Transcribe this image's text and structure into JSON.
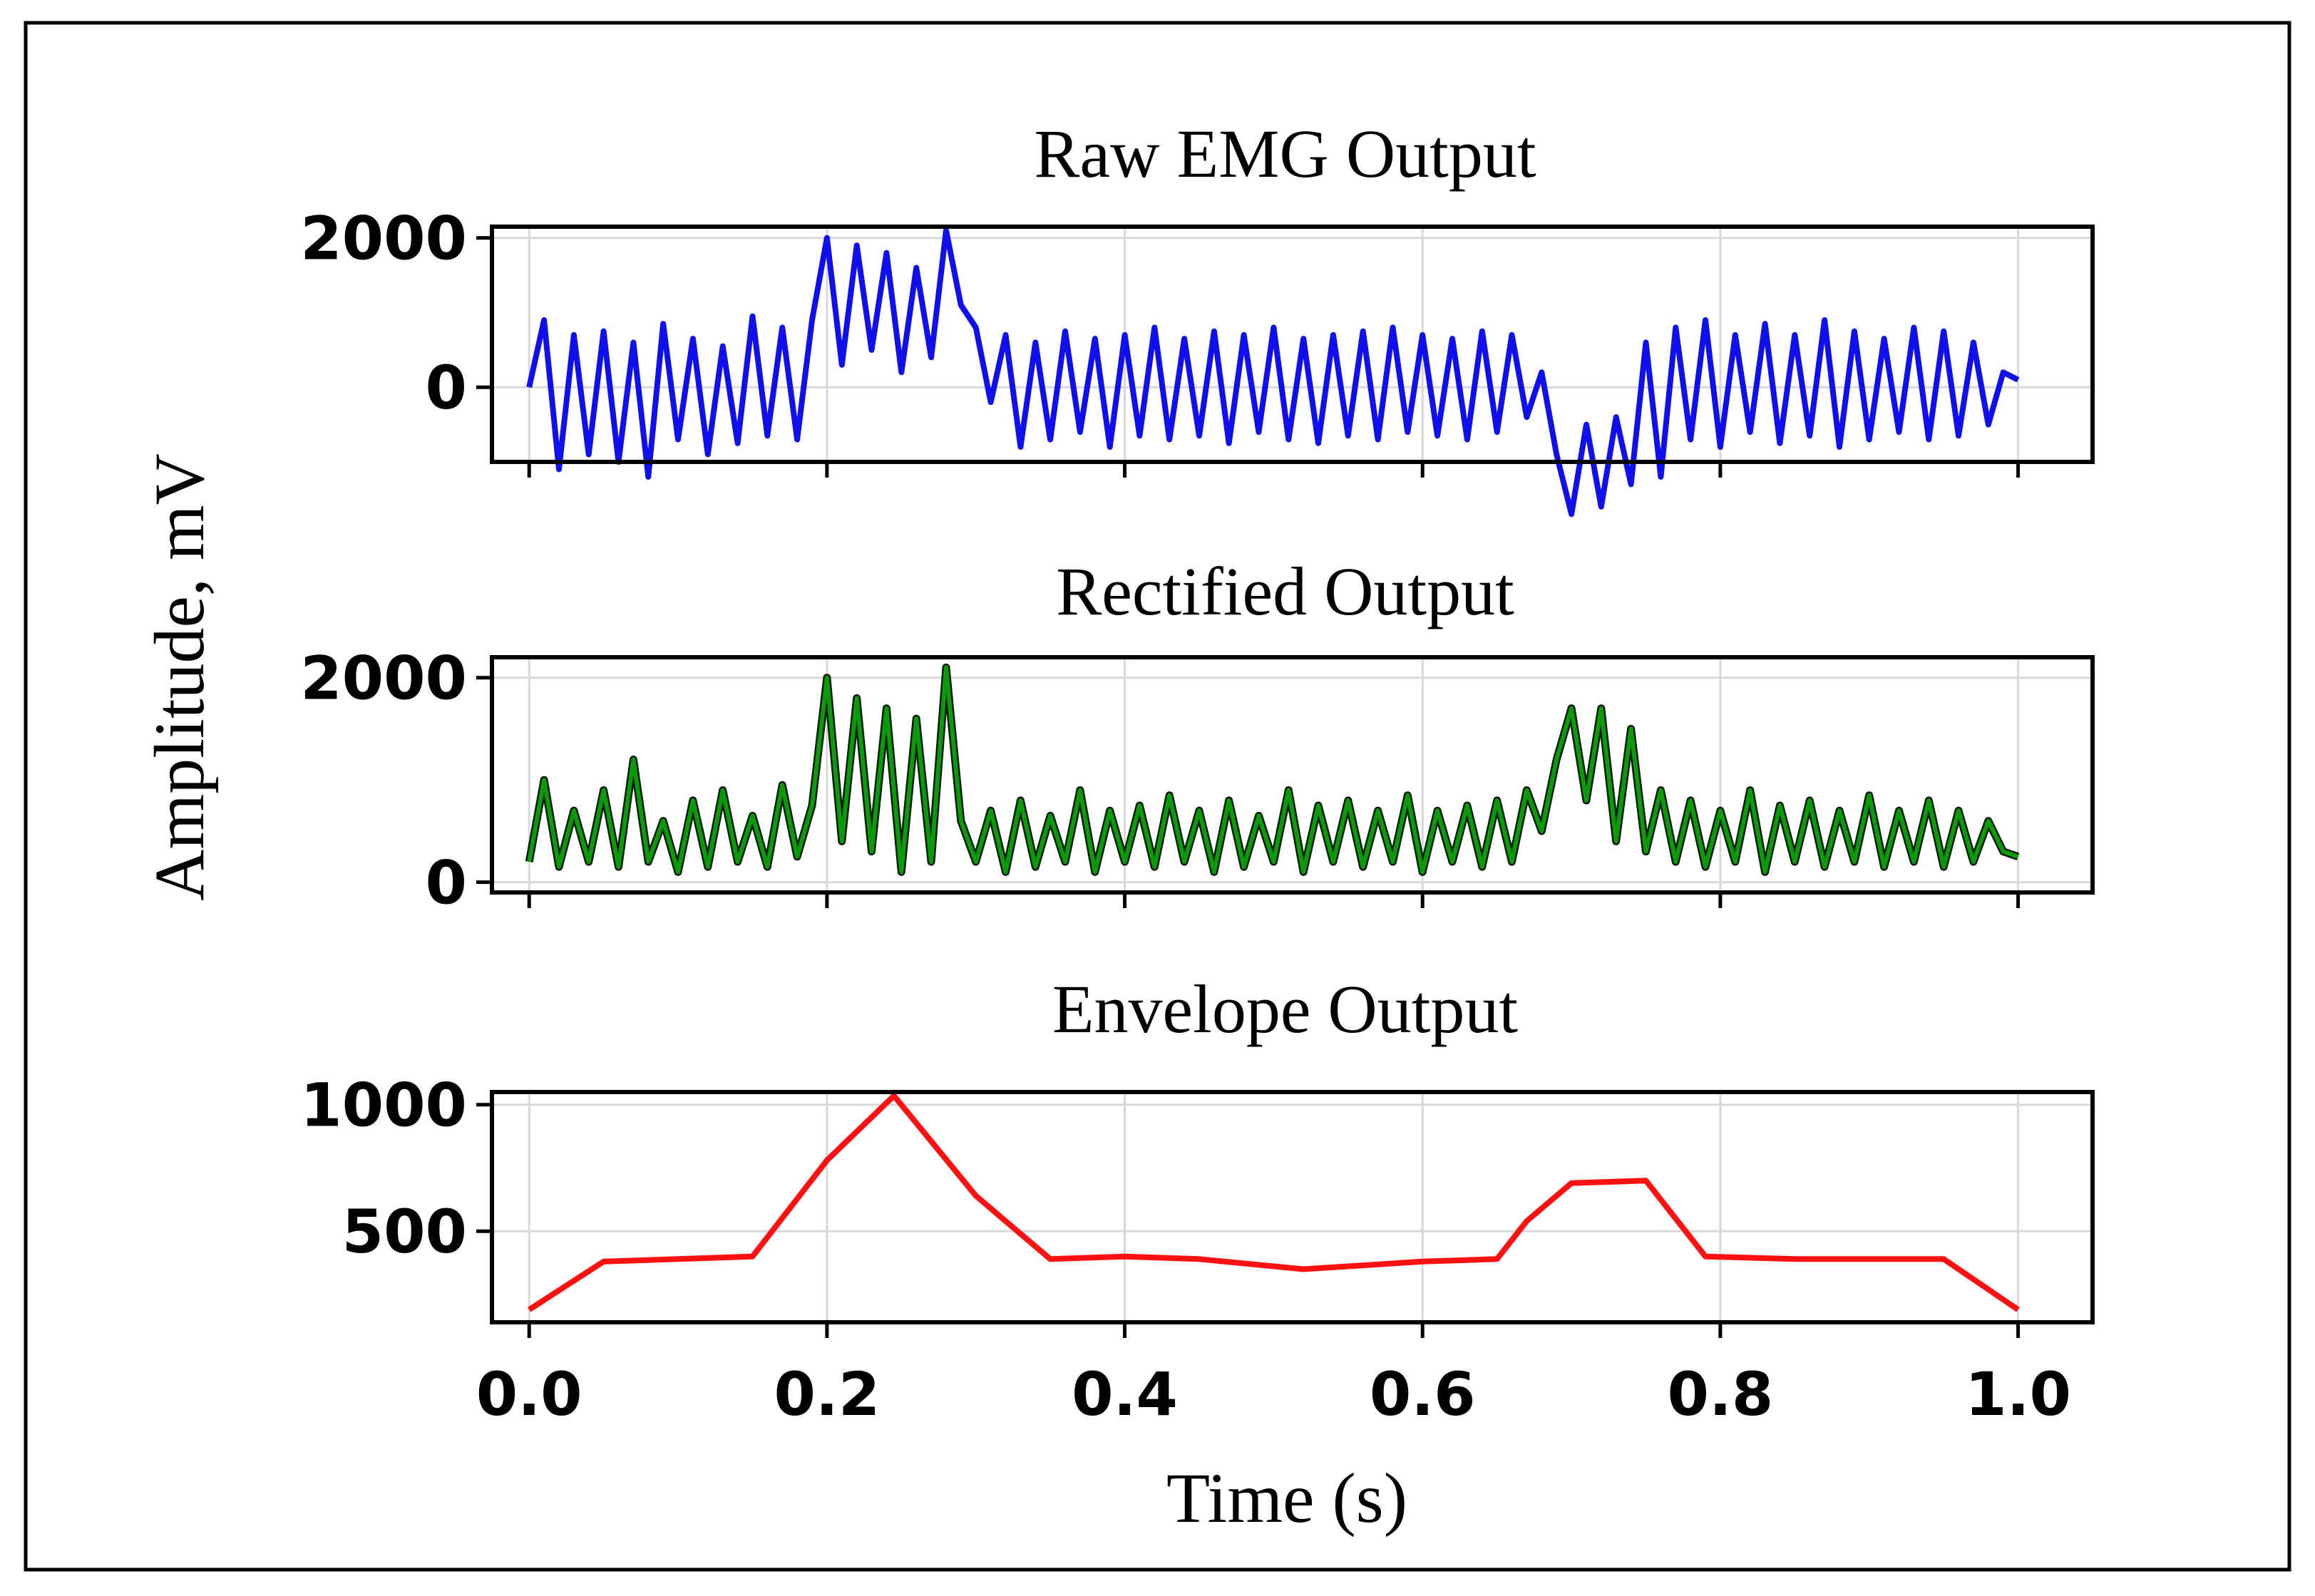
{
  "figure": {
    "ylabel": "Amplitude, mV",
    "xlabel": "Time (s)"
  },
  "chart_data": [
    {
      "type": "line",
      "title": "Raw EMG Output",
      "color": "#1010ee",
      "ylim": [
        -1000,
        2150
      ],
      "yticks": [
        0,
        2000
      ],
      "xlim": [
        -0.025,
        1.05
      ],
      "xticks": [
        0.0,
        0.2,
        0.4,
        0.6,
        0.8,
        1.0
      ],
      "show_xtick_labels": false,
      "grid": true,
      "series": [
        {
          "x": [
            0,
            0.01,
            0.02,
            0.03,
            0.04,
            0.05,
            0.06,
            0.07,
            0.08,
            0.09,
            0.1,
            0.11,
            0.12,
            0.13,
            0.14,
            0.15,
            0.16,
            0.17,
            0.18,
            0.19,
            0.2,
            0.21,
            0.22,
            0.23,
            0.24,
            0.25,
            0.26,
            0.27,
            0.28,
            0.29,
            0.3,
            0.31,
            0.32,
            0.33,
            0.34,
            0.35,
            0.36,
            0.37,
            0.38,
            0.39,
            0.4,
            0.41,
            0.42,
            0.43,
            0.44,
            0.45,
            0.46,
            0.47,
            0.48,
            0.49,
            0.5,
            0.51,
            0.52,
            0.53,
            0.54,
            0.55,
            0.56,
            0.57,
            0.58,
            0.59,
            0.6,
            0.61,
            0.62,
            0.63,
            0.64,
            0.65,
            0.66,
            0.67,
            0.68,
            0.69,
            0.7,
            0.71,
            0.72,
            0.73,
            0.74,
            0.75,
            0.76,
            0.77,
            0.78,
            0.79,
            0.8,
            0.81,
            0.82,
            0.83,
            0.84,
            0.85,
            0.86,
            0.87,
            0.88,
            0.89,
            0.9,
            0.91,
            0.92,
            0.93,
            0.94,
            0.95,
            0.96,
            0.97,
            0.98,
            0.99,
            1.0
          ],
          "y": [
            0,
            900,
            -1100,
            700,
            -900,
            750,
            -1000,
            600,
            -1200,
            850,
            -700,
            650,
            -900,
            550,
            -750,
            950,
            -650,
            800,
            -700,
            900,
            2000,
            300,
            1900,
            500,
            1800,
            200,
            1600,
            400,
            2100,
            1100,
            800,
            -200,
            700,
            -800,
            600,
            -700,
            750,
            -600,
            650,
            -800,
            700,
            -650,
            800,
            -700,
            650,
            -650,
            750,
            -750,
            700,
            -600,
            800,
            -700,
            650,
            -750,
            700,
            -650,
            750,
            -700,
            800,
            -600,
            700,
            -650,
            650,
            -700,
            750,
            -600,
            700,
            -400,
            200,
            -900,
            -1700,
            -500,
            -1600,
            -400,
            -1300,
            600,
            -1200,
            800,
            -700,
            900,
            -800,
            700,
            -600,
            850,
            -750,
            700,
            -650,
            900,
            -800,
            750,
            -700,
            650,
            -600,
            800,
            -700,
            750,
            -650,
            600,
            -500,
            200,
            100
          ]
        }
      ]
    },
    {
      "type": "line",
      "title": "Rectified Output",
      "color": "#0a9a0a",
      "edge_color": "#0a1a0a",
      "ylim": [
        -100,
        2200
      ],
      "yticks": [
        0,
        2000
      ],
      "xlim": [
        -0.025,
        1.05
      ],
      "xticks": [
        0.0,
        0.2,
        0.4,
        0.6,
        0.8,
        1.0
      ],
      "show_xtick_labels": false,
      "grid": true,
      "series": [
        {
          "x": [
            0,
            0.01,
            0.02,
            0.03,
            0.04,
            0.05,
            0.06,
            0.07,
            0.08,
            0.09,
            0.1,
            0.11,
            0.12,
            0.13,
            0.14,
            0.15,
            0.16,
            0.17,
            0.18,
            0.19,
            0.2,
            0.21,
            0.22,
            0.23,
            0.24,
            0.25,
            0.26,
            0.27,
            0.28,
            0.29,
            0.3,
            0.31,
            0.32,
            0.33,
            0.34,
            0.35,
            0.36,
            0.37,
            0.38,
            0.39,
            0.4,
            0.41,
            0.42,
            0.43,
            0.44,
            0.45,
            0.46,
            0.47,
            0.48,
            0.49,
            0.5,
            0.51,
            0.52,
            0.53,
            0.54,
            0.55,
            0.56,
            0.57,
            0.58,
            0.59,
            0.6,
            0.61,
            0.62,
            0.63,
            0.64,
            0.65,
            0.66,
            0.67,
            0.68,
            0.69,
            0.7,
            0.71,
            0.72,
            0.73,
            0.74,
            0.75,
            0.76,
            0.77,
            0.78,
            0.79,
            0.8,
            0.81,
            0.82,
            0.83,
            0.84,
            0.85,
            0.86,
            0.87,
            0.88,
            0.89,
            0.9,
            0.91,
            0.92,
            0.93,
            0.94,
            0.95,
            0.96,
            0.97,
            0.98,
            0.99,
            1.0
          ],
          "y": [
            200,
            1000,
            150,
            700,
            200,
            900,
            150,
            1200,
            200,
            600,
            100,
            800,
            150,
            900,
            200,
            650,
            150,
            950,
            250,
            750,
            2000,
            400,
            1800,
            300,
            1700,
            100,
            1600,
            200,
            2100,
            600,
            200,
            700,
            100,
            800,
            150,
            650,
            200,
            900,
            100,
            700,
            200,
            750,
            150,
            850,
            200,
            700,
            100,
            800,
            150,
            650,
            200,
            900,
            100,
            750,
            200,
            800,
            150,
            700,
            200,
            850,
            100,
            700,
            200,
            750,
            150,
            800,
            200,
            900,
            500,
            1200,
            1700,
            800,
            1700,
            400,
            1500,
            300,
            900,
            200,
            800,
            150,
            700,
            200,
            900,
            100,
            750,
            200,
            800,
            150,
            700,
            200,
            850,
            150,
            700,
            200,
            800,
            150,
            700,
            200,
            600,
            300,
            250
          ]
        }
      ]
    },
    {
      "type": "line",
      "title": "Envelope Output",
      "color": "#ff1111",
      "ylim": [
        140,
        1050
      ],
      "yticks": [
        500,
        1000
      ],
      "xlim": [
        -0.025,
        1.05
      ],
      "xticks": [
        0.0,
        0.2,
        0.4,
        0.6,
        0.8,
        1.0
      ],
      "xtick_labels": [
        "0.0",
        "0.2",
        "0.4",
        "0.6",
        "0.8",
        "1.0"
      ],
      "show_xtick_labels": true,
      "grid": true,
      "series": [
        {
          "x": [
            0,
            0.05,
            0.1,
            0.15,
            0.2,
            0.245,
            0.3,
            0.35,
            0.4,
            0.45,
            0.52,
            0.6,
            0.65,
            0.67,
            0.7,
            0.75,
            0.79,
            0.85,
            0.95,
            1.0
          ],
          "y": [
            190,
            380,
            390,
            400,
            780,
            1035,
            640,
            390,
            400,
            390,
            350,
            380,
            390,
            540,
            690,
            700,
            400,
            390,
            390,
            190
          ]
        }
      ]
    }
  ]
}
